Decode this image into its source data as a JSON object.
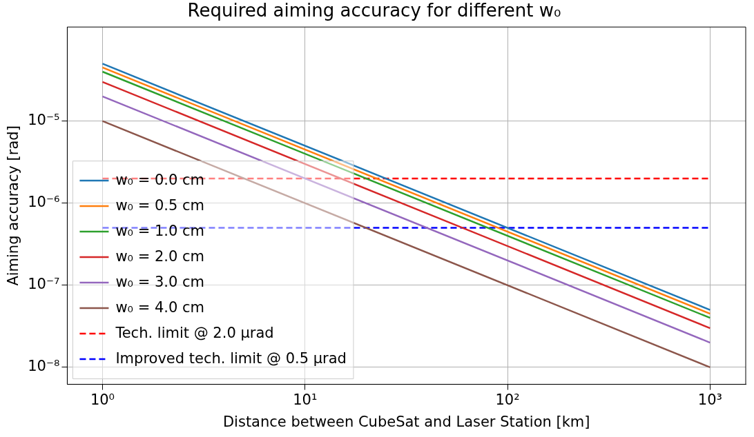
{
  "chart_data": {
    "type": "line",
    "title": "Required aiming accuracy for different w₀",
    "xlabel": "Distance between CubeSat and Laser Station [km]",
    "ylabel": "Aiming accuracy [rad]",
    "log": "xy",
    "grid": true,
    "legend": "bottom left",
    "xlim": [
      0.67,
      1500
    ],
    "ylim": [
      6.2e-09,
      0.00014
    ],
    "xticks": [
      {
        "value": 1,
        "label": "10⁰"
      },
      {
        "value": 10,
        "label": "10¹"
      },
      {
        "value": 100,
        "label": "10²"
      },
      {
        "value": 1000,
        "label": "10³"
      }
    ],
    "yticks": [
      {
        "value": 1e-08,
        "label": "10⁻⁸"
      },
      {
        "value": 1e-07,
        "label": "10⁻⁷"
      },
      {
        "value": 1e-06,
        "label": "10⁻⁶"
      },
      {
        "value": 1e-05,
        "label": "10⁻⁵"
      }
    ],
    "x": [
      1,
      1000
    ],
    "series": [
      {
        "name": "w₀ = 0.0 cm",
        "color": "#1f77b4",
        "values": [
          5e-05,
          5e-08
        ]
      },
      {
        "name": "w₀ = 0.5 cm",
        "color": "#ff7f0e",
        "values": [
          4.5e-05,
          4.5e-08
        ]
      },
      {
        "name": "w₀ = 1.0 cm",
        "color": "#2ca02c",
        "values": [
          4e-05,
          4e-08
        ]
      },
      {
        "name": "w₀ = 2.0 cm",
        "color": "#d62728",
        "values": [
          3e-05,
          3e-08
        ]
      },
      {
        "name": "w₀ = 3.0 cm",
        "color": "#9467bd",
        "values": [
          2e-05,
          2e-08
        ]
      },
      {
        "name": "w₀ = 4.0 cm",
        "color": "#8c564b",
        "values": [
          1e-05,
          1e-08
        ]
      },
      {
        "name": "Tech. limit @ 2.0 μrad",
        "color": "#ff0000",
        "line_style": "dashed",
        "values": [
          2e-06,
          2e-06
        ]
      },
      {
        "name": "Improved tech. limit @ 0.5 μrad",
        "color": "#0000ff",
        "line_style": "dashed",
        "values": [
          5e-07,
          5e-07
        ]
      }
    ]
  }
}
